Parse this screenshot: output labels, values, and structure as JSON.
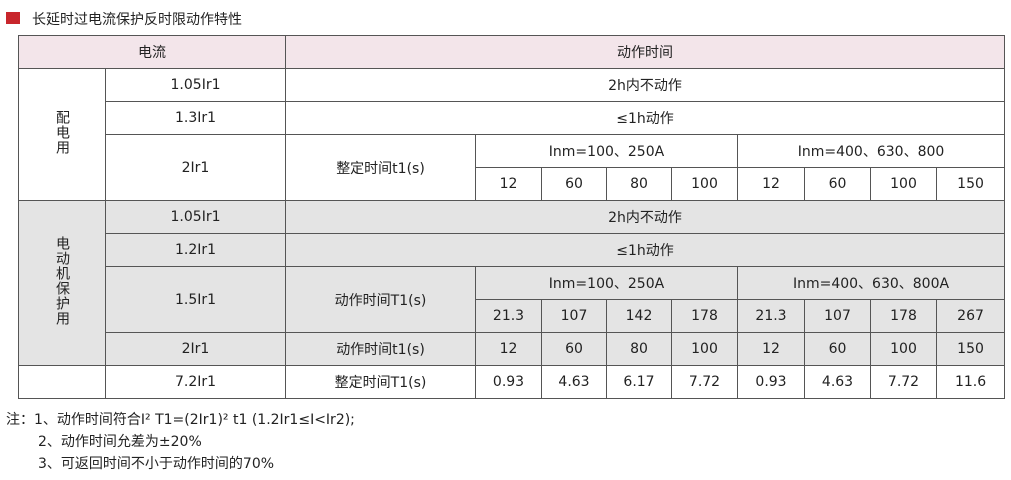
{
  "header": {
    "title": "长延时过电流保护反时限动作特性"
  },
  "table": {
    "columns": [
      "电流",
      "动作时间"
    ],
    "distribution": {
      "label": "配电用",
      "rows": [
        {
          "current": "1.05Ir1",
          "time": "2h内不动作"
        },
        {
          "current": "1.3Ir1",
          "time": "≤1h动作"
        }
      ],
      "setting": {
        "current": "2Ir1",
        "label": "整定时间t1(s)",
        "groups": [
          "Inm=100、250A",
          "Inm=400、630、800"
        ],
        "values": [
          12,
          60,
          80,
          100,
          12,
          60,
          100,
          150
        ]
      }
    },
    "motor": {
      "label": "电动机保护用",
      "rows": [
        {
          "current": "1.05Ir1",
          "time": "2h内不动作"
        },
        {
          "current": "1.2Ir1",
          "time": "≤1h动作"
        }
      ],
      "action": {
        "current": "1.5Ir1",
        "label": "动作时间T1(s)",
        "groups": [
          "Inm=100、250A",
          "Inm=400、630、800A"
        ],
        "values": [
          21.3,
          107,
          142,
          178,
          21.3,
          107,
          178,
          267
        ]
      },
      "setting": {
        "current": "2Ir1",
        "label": "动作时间t1(s)",
        "values": [
          12,
          60,
          80,
          100,
          12,
          60,
          100,
          150
        ]
      }
    },
    "last": {
      "current": "7.2Ir1",
      "label": "整定时间T1(s)",
      "values": [
        0.93,
        4.63,
        6.17,
        7.72,
        0.93,
        4.63,
        7.72,
        11.6
      ]
    }
  },
  "notes": [
    "注：1、动作时间符合I² T1=(2Ir1)² t1 (1.2Ir1≤I<Ir2);",
    "2、动作时间允差为±20%",
    "3、可返回时间不小于动作时间的70%"
  ]
}
